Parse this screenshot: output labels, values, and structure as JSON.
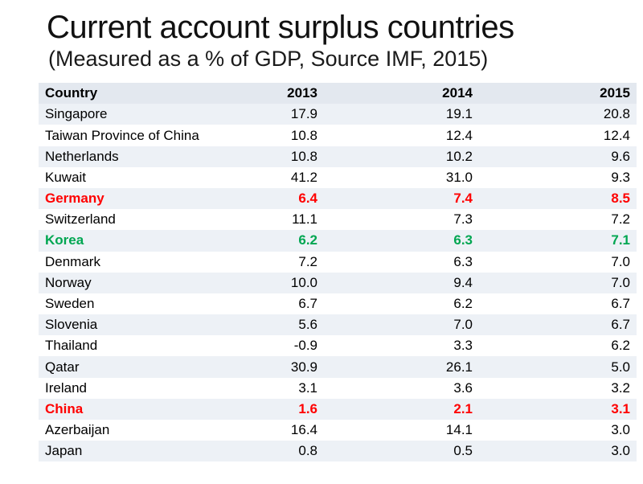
{
  "title": "Current account surplus countries",
  "subtitle": "(Measured as a % of GDP, Source IMF, 2015)",
  "colors": {
    "highlight_red": "#FF0000",
    "highlight_green": "#00A651",
    "band_header": "#E3E8EF",
    "band_light": "#EDF1F6",
    "band_white": "#FFFFFF"
  },
  "chart_data": {
    "type": "table",
    "title": "Current account surplus countries (Measured as a % of GDP, Source IMF, 2015)",
    "columns": [
      "Country",
      "2013",
      "2014",
      "2015"
    ],
    "rows": [
      {
        "country": "Singapore",
        "values": [
          "17.9",
          "19.1",
          "20.8"
        ],
        "highlight": "none"
      },
      {
        "country": "Taiwan Province of China",
        "values": [
          "10.8",
          "12.4",
          "12.4"
        ],
        "highlight": "none"
      },
      {
        "country": "Netherlands",
        "values": [
          "10.8",
          "10.2",
          "9.6"
        ],
        "highlight": "none"
      },
      {
        "country": "Kuwait",
        "values": [
          "41.2",
          "31.0",
          "9.3"
        ],
        "highlight": "none"
      },
      {
        "country": "Germany",
        "values": [
          "6.4",
          "7.4",
          "8.5"
        ],
        "highlight": "red"
      },
      {
        "country": "Switzerland",
        "values": [
          "11.1",
          "7.3",
          "7.2"
        ],
        "highlight": "none"
      },
      {
        "country": "Korea",
        "values": [
          "6.2",
          "6.3",
          "7.1"
        ],
        "highlight": "green"
      },
      {
        "country": "Denmark",
        "values": [
          "7.2",
          "6.3",
          "7.0"
        ],
        "highlight": "none"
      },
      {
        "country": "Norway",
        "values": [
          "10.0",
          "9.4",
          "7.0"
        ],
        "highlight": "none"
      },
      {
        "country": "Sweden",
        "values": [
          "6.7",
          "6.2",
          "6.7"
        ],
        "highlight": "none"
      },
      {
        "country": "Slovenia",
        "values": [
          "5.6",
          "7.0",
          "6.7"
        ],
        "highlight": "none"
      },
      {
        "country": "Thailand",
        "values": [
          "-0.9",
          "3.3",
          "6.2"
        ],
        "highlight": "none"
      },
      {
        "country": "Qatar",
        "values": [
          "30.9",
          "26.1",
          "5.0"
        ],
        "highlight": "none"
      },
      {
        "country": "Ireland",
        "values": [
          "3.1",
          "3.6",
          "3.2"
        ],
        "highlight": "none"
      },
      {
        "country": "China",
        "values": [
          "1.6",
          "2.1",
          "3.1"
        ],
        "highlight": "red"
      },
      {
        "country": "Azerbaijan",
        "values": [
          "16.4",
          "14.1",
          "3.0"
        ],
        "highlight": "none"
      },
      {
        "country": "Japan",
        "values": [
          "0.8",
          "0.5",
          "3.0"
        ],
        "highlight": "none"
      }
    ]
  }
}
